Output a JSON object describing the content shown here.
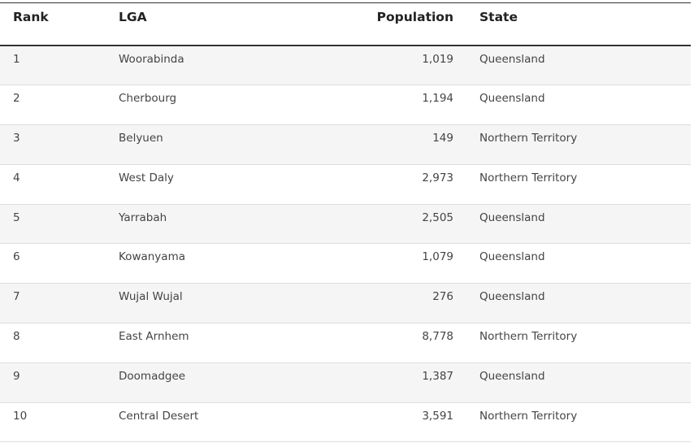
{
  "table": {
    "headers": {
      "rank": "Rank",
      "lga": "LGA",
      "population": "Population",
      "state": "State"
    },
    "rows": [
      {
        "rank": "1",
        "lga": "Woorabinda",
        "population": "1,019",
        "state": "Queensland"
      },
      {
        "rank": "2",
        "lga": "Cherbourg",
        "population": "1,194",
        "state": "Queensland"
      },
      {
        "rank": "3",
        "lga": "Belyuen",
        "population": "149",
        "state": "Northern Territory"
      },
      {
        "rank": "4",
        "lga": "West Daly",
        "population": "2,973",
        "state": "Northern Territory"
      },
      {
        "rank": "5",
        "lga": "Yarrabah",
        "population": "2,505",
        "state": "Queensland"
      },
      {
        "rank": "6",
        "lga": "Kowanyama",
        "population": "1,079",
        "state": "Queensland"
      },
      {
        "rank": "7",
        "lga": "Wujal Wujal",
        "population": "276",
        "state": "Queensland"
      },
      {
        "rank": "8",
        "lga": "East Arnhem",
        "population": "8,778",
        "state": "Northern Territory"
      },
      {
        "rank": "9",
        "lga": "Doomadgee",
        "population": "1,387",
        "state": "Queensland"
      },
      {
        "rank": "10",
        "lga": "Central Desert",
        "population": "3,591",
        "state": "Northern Territory"
      }
    ]
  }
}
